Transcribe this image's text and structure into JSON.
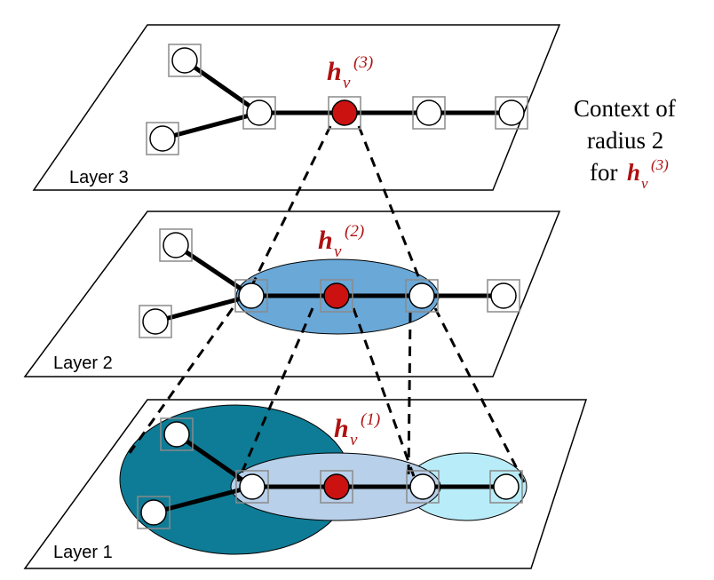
{
  "colors": {
    "highlight": "#b01010",
    "node_fill": "#ffffff",
    "center_node_fill": "#cc1111",
    "box_stroke": "#8a8a8a",
    "layer1_large_region": "#0e7c96",
    "layer1_mid_region": "#b8d0ea",
    "layer1_right_region": "#b8ecf8",
    "layer2_region": "#6aa8d8"
  },
  "layers": {
    "layer3": {
      "label": "Layer 3"
    },
    "layer2": {
      "label": "Layer 2"
    },
    "layer1": {
      "label": "Layer 1"
    }
  },
  "node_labels": {
    "h3": {
      "main": "h",
      "sub": "v",
      "sup": "(3)"
    },
    "h2": {
      "main": "h",
      "sub": "v",
      "sup": "(2)"
    },
    "h1": {
      "main": "h",
      "sub": "v",
      "sup": "(1)"
    }
  },
  "context_caption": {
    "line1": "Context of",
    "line2": "radius 2",
    "line3_prefix": "for ",
    "line3_symbol": "h",
    "line3_sub": "v",
    "line3_sup": "(3)"
  }
}
